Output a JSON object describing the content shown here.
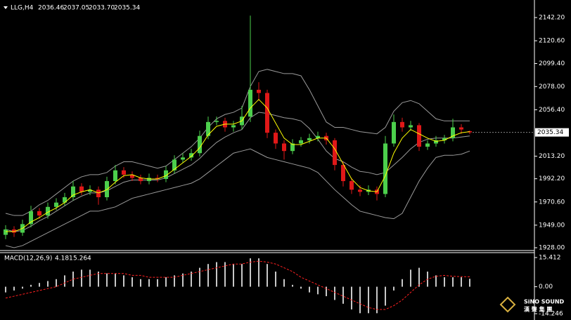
{
  "chart_data": [
    {
      "type": "candlestick",
      "title": "LLG,H4",
      "header": [
        "2036.46",
        "2037.05",
        "2033.70",
        "2035.34"
      ],
      "up_color": "#4ccf4c",
      "down_color": "#e01818",
      "ma_color": "#ffff00",
      "band_color": "#9a9a9a",
      "open": [
        1940,
        1945,
        1942,
        1950,
        1962,
        1958,
        1966,
        1970,
        1975,
        1985,
        1980,
        1982,
        1975,
        1990,
        2000,
        1996,
        1993,
        1990,
        1993,
        1992,
        2000,
        2010,
        2012,
        2016,
        2032,
        2045,
        2046,
        2040,
        2042,
        2050,
        2075,
        2072,
        2035,
        2025,
        2018,
        2025,
        2028,
        2030,
        2032,
        2028,
        2005,
        1990,
        1982,
        1980,
        1982,
        1978,
        2025,
        2045,
        2040,
        2042,
        2022,
        2025,
        2028,
        2030,
        2040,
        2036.46
      ],
      "high": [
        1949,
        1948,
        1954,
        1967,
        1965,
        1970,
        1974,
        1979,
        1990,
        1988,
        1986,
        1985,
        1994,
        2005,
        2003,
        1999,
        1996,
        1997,
        1996,
        2004,
        2014,
        2016,
        2020,
        2037,
        2050,
        2050,
        2049,
        2046,
        2060,
        2144,
        2082,
        2075,
        2038,
        2028,
        2029,
        2031,
        2034,
        2036,
        2035,
        2030,
        2008,
        1993,
        1986,
        1986,
        1985,
        2032,
        2052,
        2049,
        2046,
        2044,
        2028,
        2032,
        2033,
        2048,
        2043,
        2037.05
      ],
      "low": [
        1936,
        1938,
        1939,
        1947,
        1955,
        1955,
        1963,
        1967,
        1972,
        1977,
        1977,
        1968,
        1972,
        1987,
        1993,
        1990,
        1987,
        1987,
        1989,
        1989,
        1997,
        2007,
        2009,
        2013,
        2029,
        2042,
        2036,
        2036,
        2038,
        2045,
        2065,
        2030,
        2020,
        2010,
        2015,
        2022,
        2025,
        2027,
        2024,
        2000,
        1985,
        1978,
        1976,
        1977,
        1972,
        1975,
        2022,
        2036,
        2037,
        2018,
        2019,
        2022,
        2025,
        2027,
        2034,
        2033.7
      ],
      "close": [
        1945,
        1942,
        1950,
        1962,
        1958,
        1966,
        1970,
        1975,
        1985,
        1980,
        1982,
        1975,
        1990,
        2000,
        1996,
        1993,
        1990,
        1993,
        1992,
        2000,
        2010,
        2012,
        2016,
        2032,
        2045,
        2046,
        2040,
        2042,
        2050,
        2075,
        2072,
        2035,
        2025,
        2018,
        2025,
        2028,
        2030,
        2032,
        2028,
        2005,
        1990,
        1982,
        1980,
        1982,
        1978,
        2025,
        2045,
        2040,
        2042,
        2022,
        2025,
        2028,
        2030,
        2040,
        2038,
        2035.34
      ],
      "ma": [
        1943,
        1943,
        1946,
        1952,
        1956,
        1961,
        1965,
        1970,
        1977,
        1980,
        1982,
        1979,
        1982,
        1989,
        1995,
        1996,
        1993,
        1992,
        1992,
        1995,
        2001,
        2007,
        2013,
        2021,
        2033,
        2041,
        2043,
        2043,
        2046,
        2058,
        2066,
        2058,
        2044,
        2030,
        2024,
        2024,
        2027,
        2030,
        2030,
        2020,
        2006,
        1992,
        1984,
        1981,
        1980,
        1995,
        2016,
        2030,
        2038,
        2034,
        2030,
        2027,
        2028,
        2032,
        2035,
        2036
      ],
      "band_upper": [
        1960,
        1958,
        1958,
        1962,
        1968,
        1972,
        1978,
        1984,
        1990,
        1994,
        1996,
        1996,
        1998,
        2004,
        2008,
        2008,
        2006,
        2004,
        2002,
        2004,
        2010,
        2016,
        2022,
        2030,
        2040,
        2048,
        2052,
        2054,
        2058,
        2078,
        2092,
        2094,
        2092,
        2090,
        2090,
        2088,
        2075,
        2060,
        2045,
        2040,
        2040,
        2038,
        2036,
        2035,
        2034,
        2040,
        2055,
        2063,
        2065,
        2062,
        2055,
        2048,
        2046,
        2046,
        2046,
        2046
      ],
      "band_mid": [
        1945,
        1943,
        1944,
        1948,
        1953,
        1957,
        1962,
        1967,
        1972,
        1976,
        1979,
        1979,
        1981,
        1985,
        1989,
        1991,
        1991,
        1991,
        1991,
        1993,
        1997,
        2001,
        2005,
        2011,
        2019,
        2026,
        2031,
        2035,
        2038,
        2049,
        2054,
        2053,
        2051,
        2049,
        2048,
        2046,
        2039,
        2029,
        2018,
        2011,
        2008,
        2003,
        1999,
        1998,
        1996,
        1998,
        2005,
        2012,
        2020,
        2026,
        2029,
        2030,
        2030,
        2030,
        2031,
        2032
      ],
      "band_lower": [
        1930,
        1928,
        1930,
        1934,
        1938,
        1942,
        1946,
        1950,
        1954,
        1958,
        1962,
        1962,
        1964,
        1966,
        1970,
        1974,
        1976,
        1978,
        1980,
        1982,
        1984,
        1986,
        1988,
        1992,
        1998,
        2004,
        2010,
        2016,
        2018,
        2020,
        2016,
        2012,
        2010,
        2008,
        2006,
        2004,
        2002,
        1998,
        1990,
        1982,
        1975,
        1968,
        1962,
        1960,
        1958,
        1956,
        1955,
        1960,
        1975,
        1990,
        2002,
        2012,
        2014,
        2014,
        2015,
        2018
      ],
      "ylim": [
        1928,
        2142.2
      ],
      "yticks": [
        {
          "value": 2142.2,
          "label": "2142.20"
        },
        {
          "value": 2120.6,
          "label": "2120.60"
        },
        {
          "value": 2099.4,
          "label": "2099.40"
        },
        {
          "value": 2078,
          "label": "2078.00"
        },
        {
          "value": 2056.4,
          "label": "2056.40"
        },
        {
          "value": 2013.2,
          "label": "2013.20"
        },
        {
          "value": 1992.2,
          "label": "1992.20"
        },
        {
          "value": 1970.6,
          "label": "1970.60"
        },
        {
          "value": 1949,
          "label": "1949.00"
        },
        {
          "value": 1928,
          "label": "1928.00"
        }
      ]
    },
    {
      "type": "macd",
      "title": "MACD(12,26,9)",
      "hist_color": "#c8c8c8",
      "signal_color": "#ff2020",
      "histogram": [
        -3,
        -2,
        -1,
        1,
        2,
        3,
        4,
        6,
        8,
        9,
        9,
        8,
        7,
        7,
        6,
        5,
        4,
        4,
        4,
        5,
        6,
        7,
        8,
        10,
        12,
        13,
        13,
        12,
        12,
        15,
        15,
        12,
        8,
        4,
        1,
        -1,
        -3,
        -4,
        -5,
        -7,
        -9,
        -12,
        -14,
        -14,
        -14,
        -10,
        -2,
        4,
        9,
        10,
        8,
        6,
        5,
        5,
        5,
        4.181
      ],
      "signal": [
        -6,
        -5,
        -4,
        -3,
        -2,
        -1,
        0,
        2,
        4,
        5,
        6,
        7,
        7,
        7,
        7,
        6,
        6,
        5,
        5,
        5,
        5,
        6,
        7,
        8,
        9,
        10,
        11,
        12,
        12,
        13,
        13.5,
        13,
        12,
        10,
        8,
        5,
        3,
        1,
        -1,
        -3,
        -5,
        -7,
        -9,
        -11,
        -12,
        -12,
        -10,
        -7,
        -3,
        1,
        4,
        5.5,
        6,
        5.5,
        5.3,
        5.264
      ],
      "ylim": [
        -14.246,
        15.412
      ],
      "yticks": [
        15.412,
        {
          "value": 0,
          "label": "0.00"
        },
        -14.246
      ]
    }
  ],
  "watermark": [
    "SiNO SOUND",
    "漢 聲 集 團"
  ]
}
